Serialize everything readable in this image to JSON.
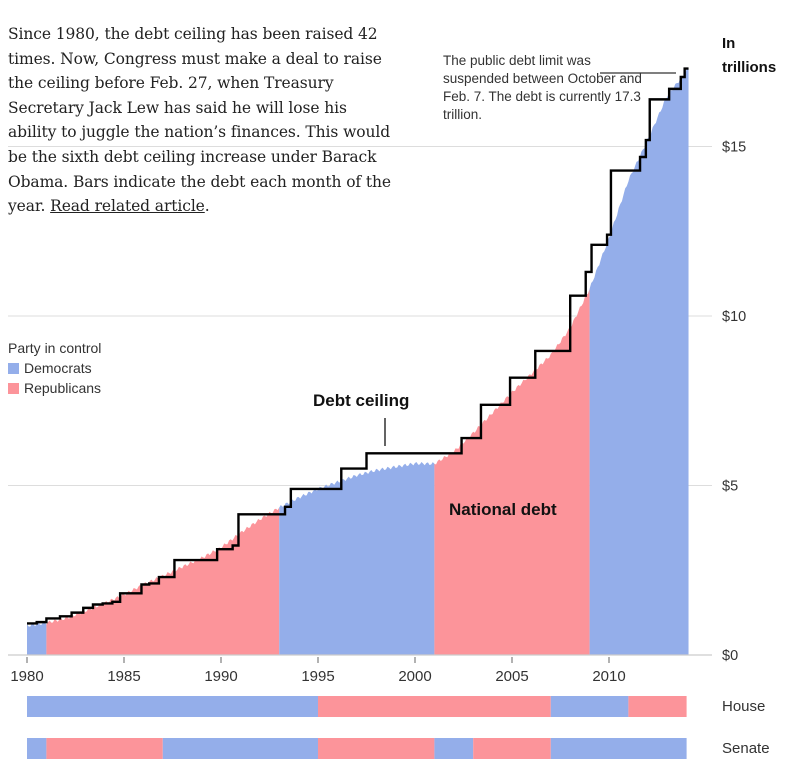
{
  "intro": {
    "text": "Since 1980, the debt ceiling has been raised 42 times. Now, Congress must make a deal to raise the ceiling before Feb. 27, when Treasury Secretary Jack Lew has said he will lose his ability to juggle the nation’s finances. This would be the sixth debt ceiling increase under Barack Obama. Bars indicate the debt each month of the year. ",
    "link_label": "Read related article",
    "link_suffix": "."
  },
  "legend": {
    "title": "Party in control",
    "items": [
      {
        "label": "Democrats",
        "color": "#94aeea"
      },
      {
        "label": "Republicans",
        "color": "#fc949a"
      }
    ]
  },
  "colors": {
    "democrat": "#94aeea",
    "republican": "#fc949a",
    "ceiling_line": "#000000",
    "grid": "#dddddd"
  },
  "chart_data": {
    "type": "area",
    "title": "",
    "unit_label": [
      "In",
      "trillions"
    ],
    "xlabel": "",
    "ylabel": "In trillions",
    "xlim": [
      1980,
      2014.1
    ],
    "ylim": [
      0,
      17.3
    ],
    "x_ticks": [
      1980,
      1985,
      1990,
      1995,
      2000,
      2005,
      2010
    ],
    "x_tick_labels": [
      "1980",
      "1985",
      "1990",
      "1995",
      "2000",
      "2005",
      "2010"
    ],
    "y_ticks": [
      0,
      5,
      10,
      15
    ],
    "y_tick_labels": [
      "$0",
      "$5",
      "$10",
      "$15"
    ],
    "grid": "horizontal",
    "annotations": {
      "debt_ceiling": "Debt ceiling",
      "national_debt": "National debt",
      "note": "The public debt limit was suspended between October and Feb. 7. The debt is currently 17.3 trillion."
    },
    "series": [
      {
        "name": "National debt",
        "type": "area",
        "x": [
          1980,
          1981,
          1982,
          1983,
          1984,
          1985,
          1986,
          1987,
          1988,
          1989,
          1990,
          1991,
          1992,
          1993,
          1994,
          1995,
          1996,
          1997,
          1998,
          1999,
          2000,
          2001,
          2002,
          2003,
          2004,
          2005,
          2006,
          2007,
          2008,
          2009,
          2010,
          2011,
          2012,
          2013,
          2014.1
        ],
        "values": [
          0.86,
          0.95,
          1.08,
          1.3,
          1.53,
          1.78,
          2.08,
          2.33,
          2.6,
          2.86,
          3.17,
          3.6,
          4.0,
          4.35,
          4.64,
          4.9,
          5.1,
          5.3,
          5.45,
          5.55,
          5.65,
          5.64,
          6.0,
          6.55,
          7.15,
          7.75,
          8.3,
          8.85,
          9.65,
          10.8,
          12.3,
          14.0,
          15.2,
          16.5,
          17.3
        ]
      },
      {
        "name": "Debt ceiling",
        "type": "step",
        "x": [
          1980,
          1980.5,
          1981,
          1981.7,
          1982.3,
          1982.9,
          1983.4,
          1983.9,
          1984.4,
          1984.8,
          1985.9,
          1986.3,
          1986.8,
          1987.6,
          1989.8,
          1990.6,
          1990.9,
          1993.3,
          1993.6,
          1996.2,
          1997.5,
          2002.4,
          2003.4,
          2004.9,
          2006.2,
          2008.0,
          2008.8,
          2009.1,
          2009.9,
          2010.1,
          2011.6,
          2011.9,
          2012.1,
          2013.1,
          2013.7,
          2013.9,
          2014.1
        ],
        "values": [
          0.93,
          0.97,
          1.08,
          1.14,
          1.25,
          1.39,
          1.49,
          1.52,
          1.57,
          1.82,
          2.08,
          2.11,
          2.3,
          2.8,
          3.12,
          3.23,
          4.15,
          4.37,
          4.9,
          5.5,
          5.95,
          6.4,
          7.38,
          8.18,
          8.97,
          10.6,
          11.3,
          12.1,
          12.4,
          14.29,
          14.69,
          15.19,
          16.39,
          16.7,
          17.05,
          17.3,
          17.3
        ]
      }
    ],
    "party_control_periods": {
      "presidency": [
        {
          "from": 1980,
          "to": 1981,
          "party": "D"
        },
        {
          "from": 1981,
          "to": 1993,
          "party": "R"
        },
        {
          "from": 1993,
          "to": 2001,
          "party": "D"
        },
        {
          "from": 2001,
          "to": 2009,
          "party": "R"
        },
        {
          "from": 2009,
          "to": 2014.1,
          "party": "D"
        }
      ],
      "house": [
        {
          "from": 1980,
          "to": 1995,
          "party": "D"
        },
        {
          "from": 1995,
          "to": 2007,
          "party": "R"
        },
        {
          "from": 2007,
          "to": 2011,
          "party": "D"
        },
        {
          "from": 2011,
          "to": 2014,
          "party": "R"
        }
      ],
      "senate": [
        {
          "from": 1980,
          "to": 1981,
          "party": "D"
        },
        {
          "from": 1981,
          "to": 1987,
          "party": "R"
        },
        {
          "from": 1987,
          "to": 1995,
          "party": "D"
        },
        {
          "from": 1995,
          "to": 2001,
          "party": "R"
        },
        {
          "from": 2001,
          "to": 2003,
          "party": "D"
        },
        {
          "from": 2003,
          "to": 2007,
          "party": "R"
        },
        {
          "from": 2007,
          "to": 2014,
          "party": "D"
        }
      ]
    },
    "row_labels": {
      "house": "House",
      "senate": "Senate"
    }
  }
}
